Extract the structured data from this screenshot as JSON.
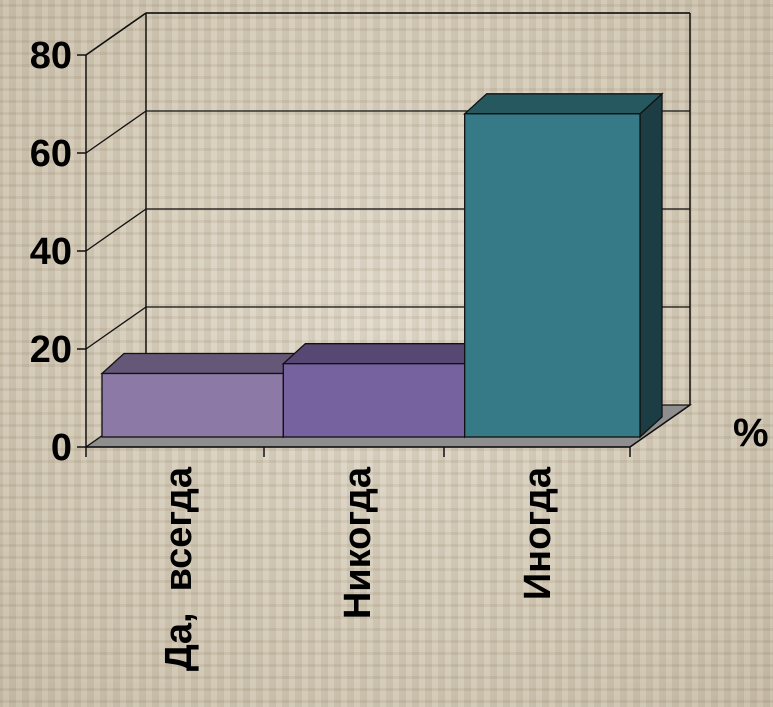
{
  "chart_data": {
    "type": "bar",
    "style": "3d-column",
    "categories": [
      "Да,  всегда",
      "Никогда",
      "Иногда"
    ],
    "values": [
      15,
      17,
      68
    ],
    "colors": [
      "#8c79a6",
      "#7762a0",
      "#357a86"
    ],
    "ylim": [
      0,
      80
    ],
    "yticks": [
      0,
      20,
      40,
      60,
      80
    ],
    "unit_label": "%",
    "grid": true,
    "legend": "none"
  }
}
